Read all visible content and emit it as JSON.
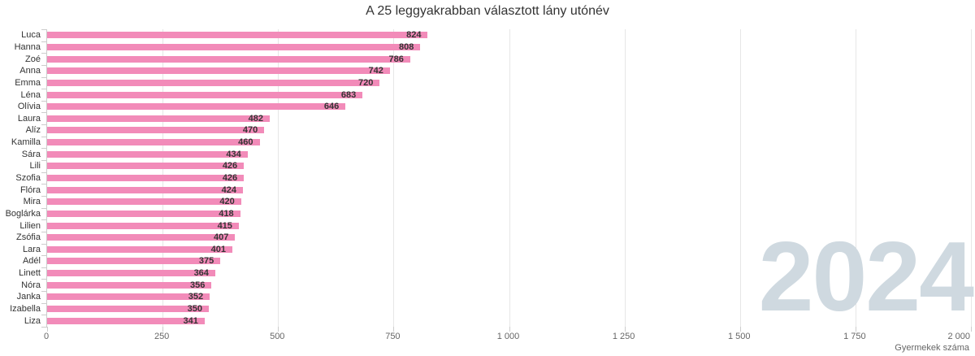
{
  "chart_data": {
    "type": "bar",
    "orientation": "horizontal",
    "title": "A 25 leggyakrabban választott lány utónév",
    "categories": [
      "Luca",
      "Hanna",
      "Zoé",
      "Anna",
      "Emma",
      "Léna",
      "Olívia",
      "Laura",
      "Alíz",
      "Kamilla",
      "Sára",
      "Lili",
      "Szofia",
      "Flóra",
      "Mira",
      "Boglárka",
      "Lilien",
      "Zsófia",
      "Lara",
      "Adél",
      "Linett",
      "Nóra",
      "Janka",
      "Izabella",
      "Liza"
    ],
    "values": [
      824,
      808,
      786,
      742,
      720,
      683,
      646,
      482,
      470,
      460,
      434,
      426,
      426,
      424,
      420,
      418,
      415,
      407,
      401,
      375,
      364,
      356,
      352,
      350,
      341
    ],
    "xlabel": "Gyermekek száma",
    "ylabel": "",
    "xlim": [
      0,
      2000
    ],
    "x_tick_labels": [
      "0",
      "250",
      "500",
      "750",
      "1 000",
      "1 250",
      "1 500",
      "1 750",
      "2 000"
    ],
    "grid": true,
    "legend": "none",
    "data_labels": "inside-end",
    "watermark": "2024",
    "colors": {
      "bar": "#f28bb9",
      "value_label": "#333333",
      "category_label": "#333333",
      "tick_label": "#666666",
      "title": "#333333",
      "gridline": "#e6e6e6",
      "axis": "#cccccc",
      "watermark": "#cfd9e0",
      "background": "#ffffff"
    }
  }
}
